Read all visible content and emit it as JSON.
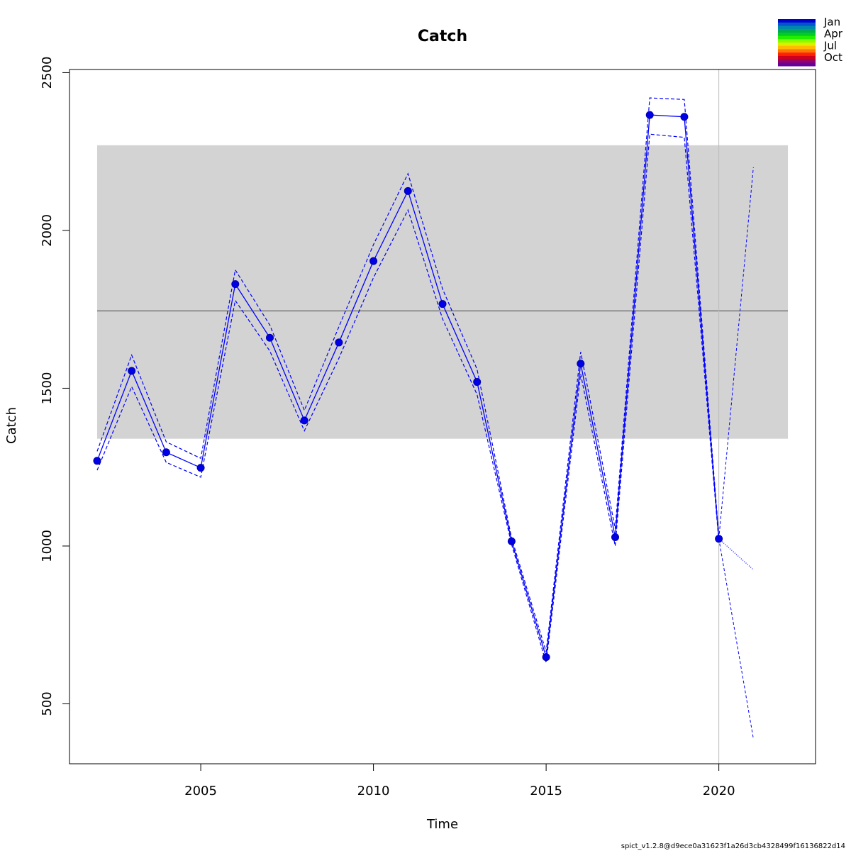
{
  "chart_data": {
    "type": "line",
    "title": "Catch",
    "xlabel": "Time",
    "ylabel": "Catch",
    "xlim": [
      2001.2,
      2022.8
    ],
    "ylim": [
      310,
      2510
    ],
    "x_ticks": [
      2005,
      2010,
      2015,
      2020
    ],
    "y_ticks": [
      500,
      1000,
      1500,
      2000,
      2500
    ],
    "reference_band": {
      "x": [
        2002,
        2022
      ],
      "y": [
        1340,
        2270
      ],
      "color": "#d3d3d3"
    },
    "reference_line": {
      "x": [
        2002,
        2022
      ],
      "y": 1745,
      "color": "#444444"
    },
    "vertical_line": {
      "x": 2020,
      "color": "#bbbbbb"
    },
    "series": [
      {
        "x": [
          2002,
          2003,
          2004,
          2005,
          2006,
          2007,
          2008,
          2009,
          2010,
          2011,
          2012,
          2013,
          2014,
          2015,
          2016,
          2017,
          2018,
          2019,
          2020
        ],
        "values": [
          1270,
          1555,
          1297,
          1248,
          1830,
          1660,
          1398,
          1645,
          1903,
          2125,
          1767,
          1520,
          1015,
          648,
          1578,
          1028,
          2366,
          2360,
          1023
        ],
        "lower": [
          1240,
          1505,
          1265,
          1218,
          1778,
          1618,
          1365,
          1595,
          1850,
          2065,
          1720,
          1480,
          1005,
          630,
          1545,
          1000,
          2305,
          2295,
          1015
        ],
        "upper": [
          1300,
          1605,
          1330,
          1278,
          1875,
          1700,
          1430,
          1695,
          1955,
          2180,
          1815,
          1560,
          1025,
          665,
          1615,
          1055,
          2420,
          2415,
          1030
        ],
        "color": "#0000ff",
        "point_color": "#0000e6"
      }
    ],
    "forecast": {
      "x": [
        2020,
        2021
      ],
      "values": [
        1023,
        925
      ],
      "lower": [
        1023,
        390
      ],
      "upper": [
        1023,
        2200
      ]
    },
    "legend": {
      "position": "top-right",
      "labels": [
        "Jan",
        "Apr",
        "Jul",
        "Oct"
      ],
      "colors": [
        "#0000cc",
        "#0055cc",
        "#0088aa",
        "#00aa55",
        "#00cc22",
        "#22ee00",
        "#88ff00",
        "#ddee00",
        "#ffbb00",
        "#ff7700",
        "#ff2200",
        "#cc0022",
        "#990066",
        "#660099"
      ]
    },
    "footnote": "spict_v1.2.8@d9ece0a31623f1a26d3cb4328499f16136822d14"
  }
}
